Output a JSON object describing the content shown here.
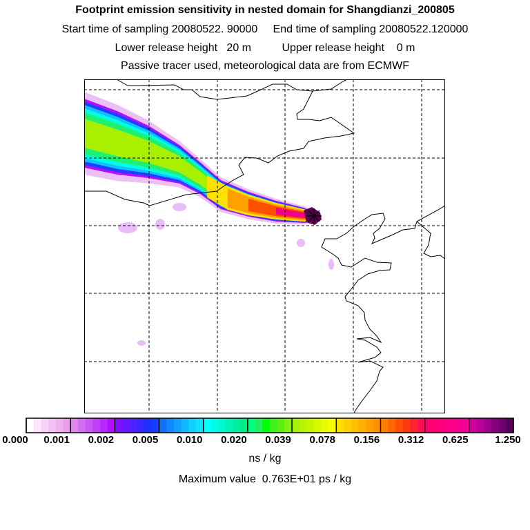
{
  "header": {
    "title": "Footprint emission sensitivity in nested domain for Shangdianzi_200805",
    "line2": "Start time of sampling 20080522. 90000     End time of sampling 20080522.120000",
    "line3": "Lower release height   20 m          Upper release height    0 m",
    "line4": "Passive tracer used, meteorological data are from ECMWF"
  },
  "colorbar": {
    "labels": [
      "0.000",
      "0.001",
      "0.002",
      "0.005",
      "0.010",
      "0.020",
      "0.039",
      "0.078",
      "0.156",
      "0.312",
      "0.625",
      "1.250"
    ],
    "unit": "ns / kg",
    "colors": [
      [
        "#ffffff",
        "#fbe6fb",
        "#f6d2f6",
        "#f2c0f2",
        "#eeb0ee",
        "#ea9fea"
      ],
      [
        "#e088f0",
        "#d070f0",
        "#c858f4",
        "#c040f8",
        "#b828fc",
        "#b010ff"
      ],
      [
        "#8010ff",
        "#6818ff",
        "#5020ff",
        "#3828ff",
        "#2030ff",
        "#1040ff"
      ],
      [
        "#1070ff",
        "#1088ff",
        "#10a0ff",
        "#10b8ff",
        "#10d0ff",
        "#10e0ff"
      ],
      [
        "#00ffff",
        "#00fbe8",
        "#00f8d0",
        "#00f4b8",
        "#00f0a0",
        "#00ec88"
      ],
      [
        "#00ff80",
        "#20f060",
        "#00ff00",
        "#40f020",
        "#60f010",
        "#80f010"
      ],
      [
        "#a8f000",
        "#b8f400",
        "#c8f400",
        "#d8f800",
        "#e8fc00",
        "#f8ff00"
      ],
      [
        "#ffe000",
        "#ffd000",
        "#ffc000",
        "#ffb000",
        "#ffa000",
        "#ff9000"
      ],
      [
        "#ff8000",
        "#ff6800",
        "#ff5000",
        "#ff3810",
        "#ff2030",
        "#ff1050"
      ],
      [
        "#ff0070",
        "#ff0078",
        "#ff0080",
        "#fc0088",
        "#f80090",
        "#f40098"
      ],
      [
        "#d000a0",
        "#b80098",
        "#a00090",
        "#880080",
        "#700070",
        "#580058"
      ]
    ]
  },
  "footer": {
    "max_value": "Maximum value  0.763E+01 ps / kg"
  },
  "map": {
    "station_name": "Shangdianzi",
    "plume_colors": [
      "#ecc0f4",
      "#b010ff",
      "#2040ff",
      "#10c0ff",
      "#00ffe0",
      "#20f070",
      "#a8f000"
    ],
    "warm_colors": [
      "#ffe000",
      "#ffa000",
      "#ff5000",
      "#ff1050",
      "#f00090",
      "#58004f"
    ]
  }
}
